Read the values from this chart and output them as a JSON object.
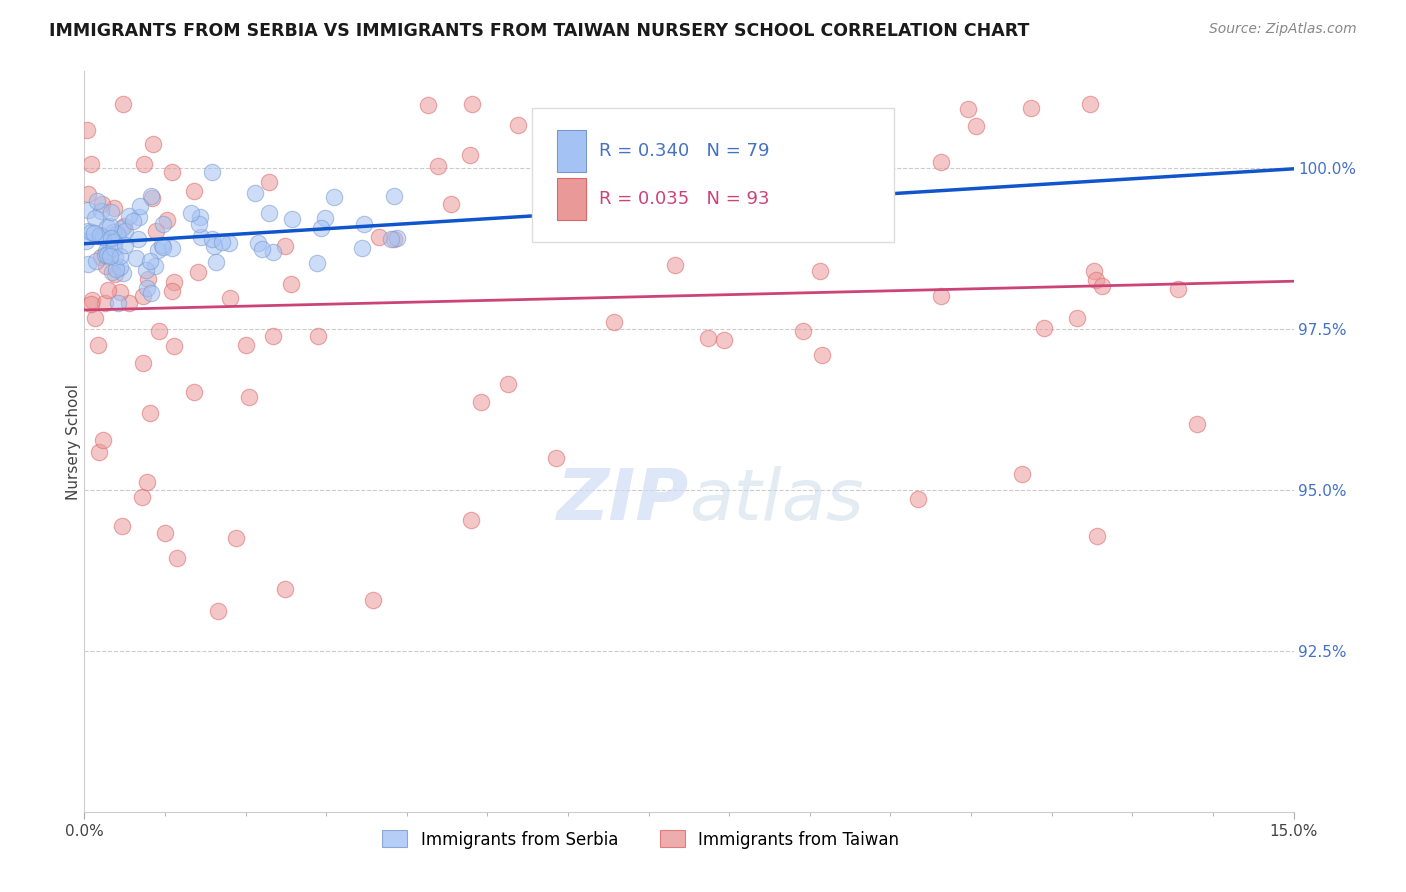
{
  "title": "IMMIGRANTS FROM SERBIA VS IMMIGRANTS FROM TAIWAN NURSERY SCHOOL CORRELATION CHART",
  "source": "Source: ZipAtlas.com",
  "ylabel": "Nursery School",
  "serbia_R": 0.34,
  "serbia_N": 79,
  "taiwan_R": 0.035,
  "taiwan_N": 93,
  "serbia_color": "#a4c2f4",
  "taiwan_color": "#ea9999",
  "serbia_line_color": "#1155cc",
  "taiwan_line_color": "#cc4477",
  "legend_serbia": "Immigrants from Serbia",
  "legend_taiwan": "Immigrants from Taiwan",
  "xlim": [
    0,
    15
  ],
  "ylim": [
    90.0,
    101.5
  ],
  "yticks": [
    92.5,
    95.0,
    97.5,
    100.0
  ],
  "ytick_labels": [
    "92.5%",
    "95.0%",
    "97.5%",
    "100.0%"
  ]
}
